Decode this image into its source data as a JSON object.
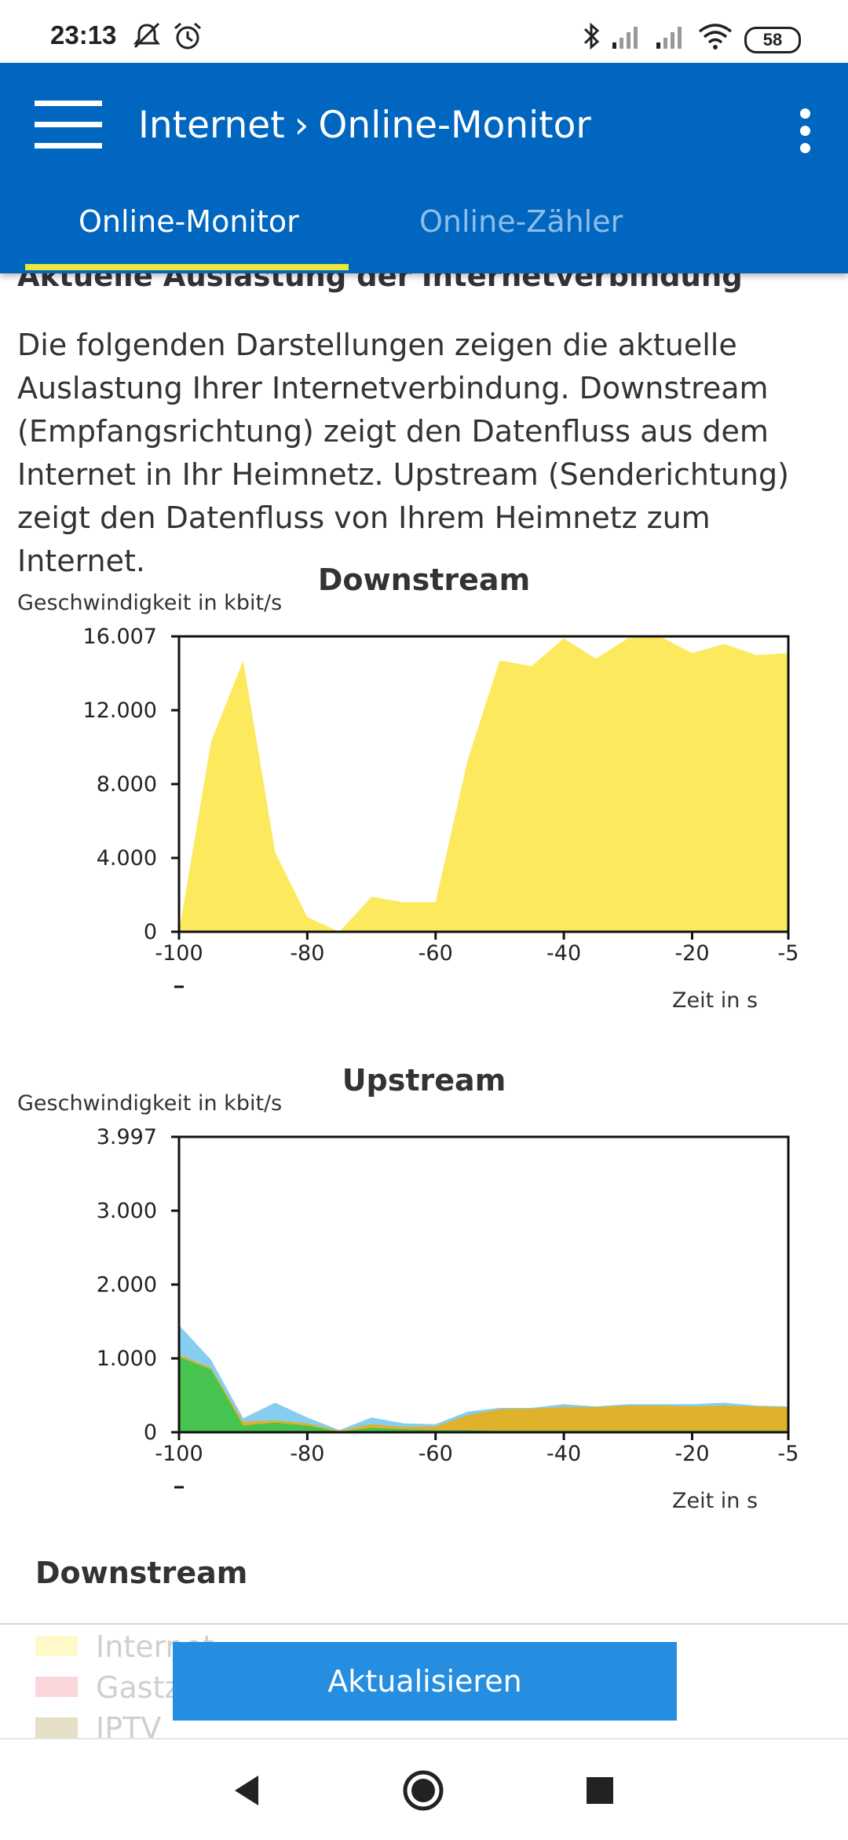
{
  "status_bar": {
    "time": "23:13",
    "battery": "58",
    "icons": [
      "mute-icon",
      "alarm-icon",
      "bluetooth-icon",
      "signal-icon",
      "signal-icon",
      "wifi-icon"
    ]
  },
  "app_bar": {
    "breadcrumb_parent": "Internet",
    "breadcrumb_separator": "›",
    "breadcrumb_current": "Online-Monitor",
    "accent_color": "#0066c0",
    "tab_indicator_color": "#e9e83a"
  },
  "tabs": [
    {
      "label": "Online-Monitor",
      "active": true
    },
    {
      "label": "Online-Zähler",
      "active": false
    }
  ],
  "main": {
    "section_title": "Aktuelle Auslastung der Internetverbindung",
    "intro": "Die folgenden Darstellungen zeigen die aktuelle Auslastung Ihrer Internetverbindung. Downstream (Empfangsrichtung) zeigt den Datenfluss aus dem Internet in Ihr Heimnetz. Upstream (Senderichtung) zeigt den Datenfluss von Ihrem Heimnetz zum Internet."
  },
  "chart_data": [
    {
      "type": "area",
      "title": "Downstream",
      "ylabel": "Geschwindigkeit in kbit/s",
      "xlabel": "Zeit in s",
      "xlim": [
        -100,
        -5
      ],
      "ylim": [
        0,
        16007
      ],
      "yticks": [
        "0",
        "4.000",
        "8.000",
        "12.000",
        "16.007"
      ],
      "xticks": [
        "-100",
        "-80",
        "-60",
        "-40",
        "-20",
        "-5"
      ],
      "x": [
        -100,
        -95,
        -90,
        -85,
        -80,
        -75,
        -70,
        -65,
        -60,
        -55,
        -50,
        -45,
        -40,
        -35,
        -30,
        -25,
        -20,
        -15,
        -10,
        -5
      ],
      "series": [
        {
          "color": "#fde95e",
          "values": [
            0,
            10300,
            14700,
            4300,
            800,
            0,
            1900,
            1600,
            1600,
            9300,
            14700,
            14400,
            15900,
            14800,
            15900,
            16000,
            15100,
            15600,
            15000,
            15100
          ]
        }
      ]
    },
    {
      "type": "area",
      "title": "Upstream",
      "ylabel": "Geschwindigkeit in kbit/s",
      "xlabel": "Zeit in s",
      "xlim": [
        -100,
        -5
      ],
      "ylim": [
        0,
        3997
      ],
      "yticks": [
        "0",
        "1.000",
        "2.000",
        "3.000",
        "3.997"
      ],
      "xticks": [
        "-100",
        "-80",
        "-60",
        "-40",
        "-20",
        "-5"
      ],
      "x": [
        -100,
        -95,
        -90,
        -85,
        -80,
        -75,
        -70,
        -65,
        -60,
        -55,
        -50,
        -45,
        -40,
        -35,
        -30,
        -25,
        -20,
        -15,
        -10,
        -5
      ],
      "series": [
        {
          "color": "#87cdf0",
          "values": [
            1450,
            980,
            190,
            400,
            200,
            30,
            200,
            120,
            110,
            280,
            330,
            330,
            380,
            350,
            380,
            380,
            380,
            400,
            360,
            350
          ]
        },
        {
          "color": "#e0b12a",
          "values": [
            1050,
            870,
            140,
            160,
            120,
            20,
            110,
            70,
            80,
            230,
            310,
            320,
            340,
            340,
            360,
            360,
            350,
            360,
            350,
            340
          ]
        },
        {
          "color": "#47c44f",
          "values": [
            1020,
            850,
            90,
            130,
            90,
            10,
            60,
            40,
            30,
            30,
            20,
            20,
            20,
            20,
            20,
            20,
            20,
            20,
            20,
            20
          ]
        }
      ]
    }
  ],
  "legend": {
    "title": "Downstream",
    "items": [
      {
        "label": "Internet",
        "color": "#fff8c8"
      },
      {
        "label": "Gastz",
        "color": "#fbd7dc"
      },
      {
        "label": "IPTV",
        "color": "#e5dfc6"
      }
    ]
  },
  "refresh_button": "Aktualisieren",
  "nav_bar": {
    "back": "back-icon",
    "home": "home-icon",
    "recents": "recents-icon"
  }
}
